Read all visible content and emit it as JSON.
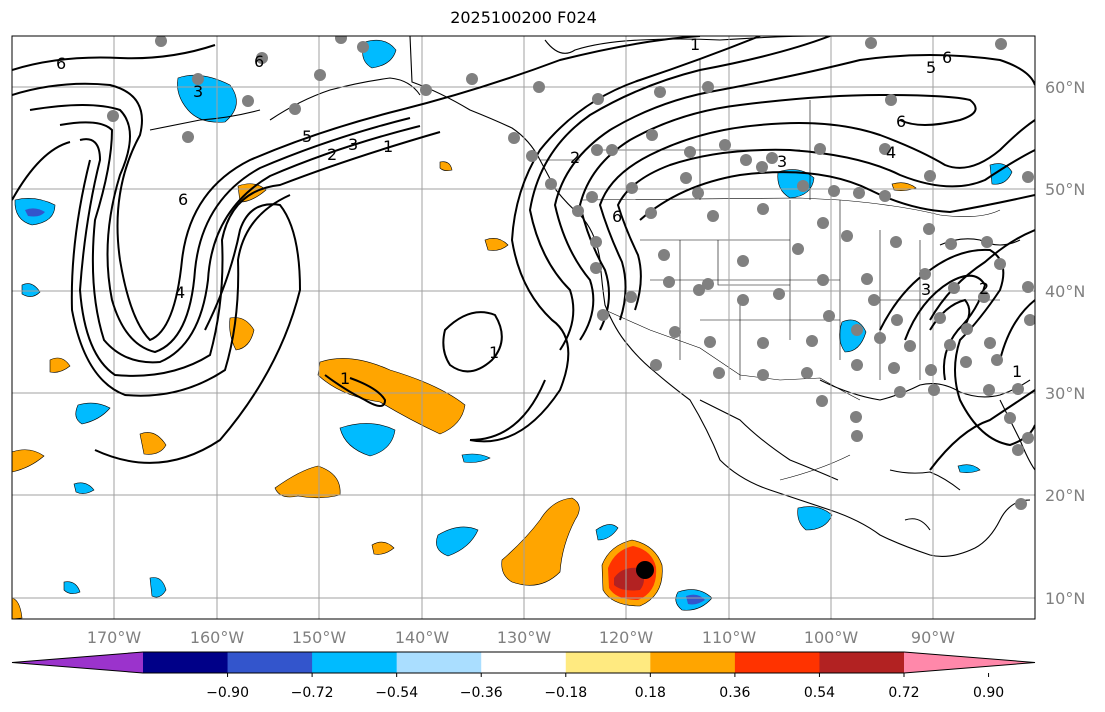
{
  "title": "2025100200 F024",
  "lat_labels": [
    "60°N",
    "50°N",
    "40°N",
    "30°N",
    "20°N",
    "10°N"
  ],
  "lon_labels": [
    "170°W",
    "160°W",
    "150°W",
    "140°W",
    "130°W",
    "120°W",
    "110°W",
    "100°W",
    "90°W"
  ],
  "colorbar": {
    "tick_labels": [
      "−0.90",
      "−0.72",
      "−0.54",
      "−0.36",
      "−0.18",
      "0.18",
      "0.36",
      "0.54",
      "0.72",
      "0.90"
    ],
    "colors": [
      "#9b33cc",
      "#000088",
      "#3355cc",
      "#00bbff",
      "#aadeff",
      "#ffffff",
      "#ffea80",
      "#ffa500",
      "#ff3300",
      "#b22222",
      "#ff88aa"
    ]
  },
  "contour_labels": [
    "6",
    "6",
    "3",
    "5",
    "3",
    "2",
    "1",
    "6",
    "4",
    "1",
    "1",
    "1",
    "2",
    "6",
    "3",
    "5",
    "6",
    "6",
    "4",
    "3",
    "2",
    "1"
  ],
  "colors": {
    "land_outline": "#000000",
    "grid": "#a0a0a0",
    "station": "#808080",
    "storm_center": "#000000"
  }
}
